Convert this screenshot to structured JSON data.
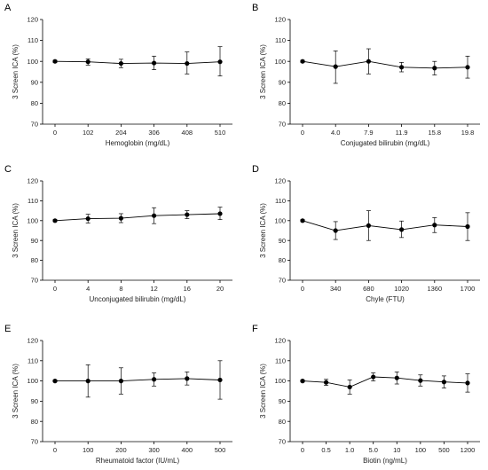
{
  "chart_data": [
    {
      "type": "line",
      "panel_label": "A",
      "xlabel": "Hemoglobin (mg/dL)",
      "ylabel": "3 Screen ICA (%)",
      "categories": [
        "0",
        "102",
        "204",
        "306",
        "408",
        "510"
      ],
      "values": [
        100,
        99.8,
        99,
        99.2,
        99,
        99.8
      ],
      "err_low": [
        99.5,
        98.2,
        97,
        96,
        94,
        93
      ],
      "err_high": [
        100.5,
        101.2,
        101,
        102.5,
        104.5,
        107
      ],
      "ylim": [
        70,
        120
      ],
      "yticks": [
        "70",
        "80",
        "90",
        "100",
        "110",
        "120"
      ],
      "grid": false
    },
    {
      "type": "line",
      "panel_label": "B",
      "xlabel": "Conjugated bilirubin (mg/dL)",
      "ylabel": "3 Screen ICA (%)",
      "categories": [
        "0",
        "4.0",
        "7.9",
        "11.9",
        "15.8",
        "19.8"
      ],
      "values": [
        100,
        97.5,
        100,
        97.2,
        96.8,
        97.2
      ],
      "err_low": [
        99.5,
        89.5,
        94,
        95,
        93.5,
        92
      ],
      "err_high": [
        100.5,
        105,
        106,
        99.5,
        100,
        102.5
      ],
      "ylim": [
        70,
        120
      ],
      "yticks": [
        "70",
        "80",
        "90",
        "100",
        "110",
        "120"
      ],
      "grid": false
    },
    {
      "type": "line",
      "panel_label": "C",
      "xlabel": "Unconjugated bilirubin (mg/dL)",
      "ylabel": "3 Screen ICA (%)",
      "categories": [
        "0",
        "4",
        "8",
        "12",
        "16",
        "20"
      ],
      "values": [
        100,
        101,
        101.2,
        102.5,
        103,
        103.5
      ],
      "err_low": [
        99.5,
        98.8,
        99,
        98.5,
        101,
        100.5
      ],
      "err_high": [
        100.5,
        103.2,
        103.5,
        106.5,
        105,
        106.8
      ],
      "ylim": [
        70,
        120
      ],
      "yticks": [
        "70",
        "80",
        "90",
        "100",
        "110",
        "120"
      ],
      "grid": false
    },
    {
      "type": "line",
      "panel_label": "D",
      "xlabel": "Chyle (FTU)",
      "ylabel": "3 Screen ICA (%)",
      "categories": [
        "0",
        "340",
        "680",
        "1020",
        "1360",
        "1700"
      ],
      "values": [
        100,
        95,
        97.5,
        95.5,
        97.8,
        97
      ],
      "err_low": [
        99.5,
        90.5,
        90,
        91.5,
        94,
        90
      ],
      "err_high": [
        100.5,
        99.5,
        105,
        99.8,
        101.5,
        104
      ],
      "ylim": [
        70,
        120
      ],
      "yticks": [
        "70",
        "80",
        "90",
        "100",
        "110",
        "120"
      ],
      "grid": false
    },
    {
      "type": "line",
      "panel_label": "E",
      "xlabel": "Rheumatoid factor (IU/mL)",
      "ylabel": "3 Screen ICA (%)",
      "categories": [
        "0",
        "100",
        "200",
        "300",
        "400",
        "500"
      ],
      "values": [
        100,
        100,
        100,
        100.8,
        101.2,
        100.5
      ],
      "err_low": [
        99.5,
        92,
        93.5,
        97.5,
        98,
        91
      ],
      "err_high": [
        100.5,
        108,
        106.5,
        104,
        104.5,
        110
      ],
      "ylim": [
        70,
        120
      ],
      "yticks": [
        "70",
        "80",
        "90",
        "100",
        "110",
        "120"
      ],
      "grid": false
    },
    {
      "type": "line",
      "panel_label": "F",
      "xlabel": "Biotin (ng/mL)",
      "ylabel": "3 Screen ICA (%)",
      "categories": [
        "0",
        "0.5",
        "1.0",
        "5.0",
        "10",
        "100",
        "500",
        "1200"
      ],
      "values": [
        100,
        99.3,
        97,
        102,
        101.5,
        100.2,
        99.5,
        99
      ],
      "err_low": [
        99.5,
        97.8,
        93.5,
        100,
        98.5,
        97.5,
        96.5,
        94.5
      ],
      "err_high": [
        100.5,
        100.8,
        100.5,
        104,
        104.5,
        103,
        102.5,
        103.5
      ],
      "ylim": [
        70,
        120
      ],
      "yticks": [
        "70",
        "80",
        "90",
        "100",
        "110",
        "120"
      ],
      "grid": false
    }
  ]
}
